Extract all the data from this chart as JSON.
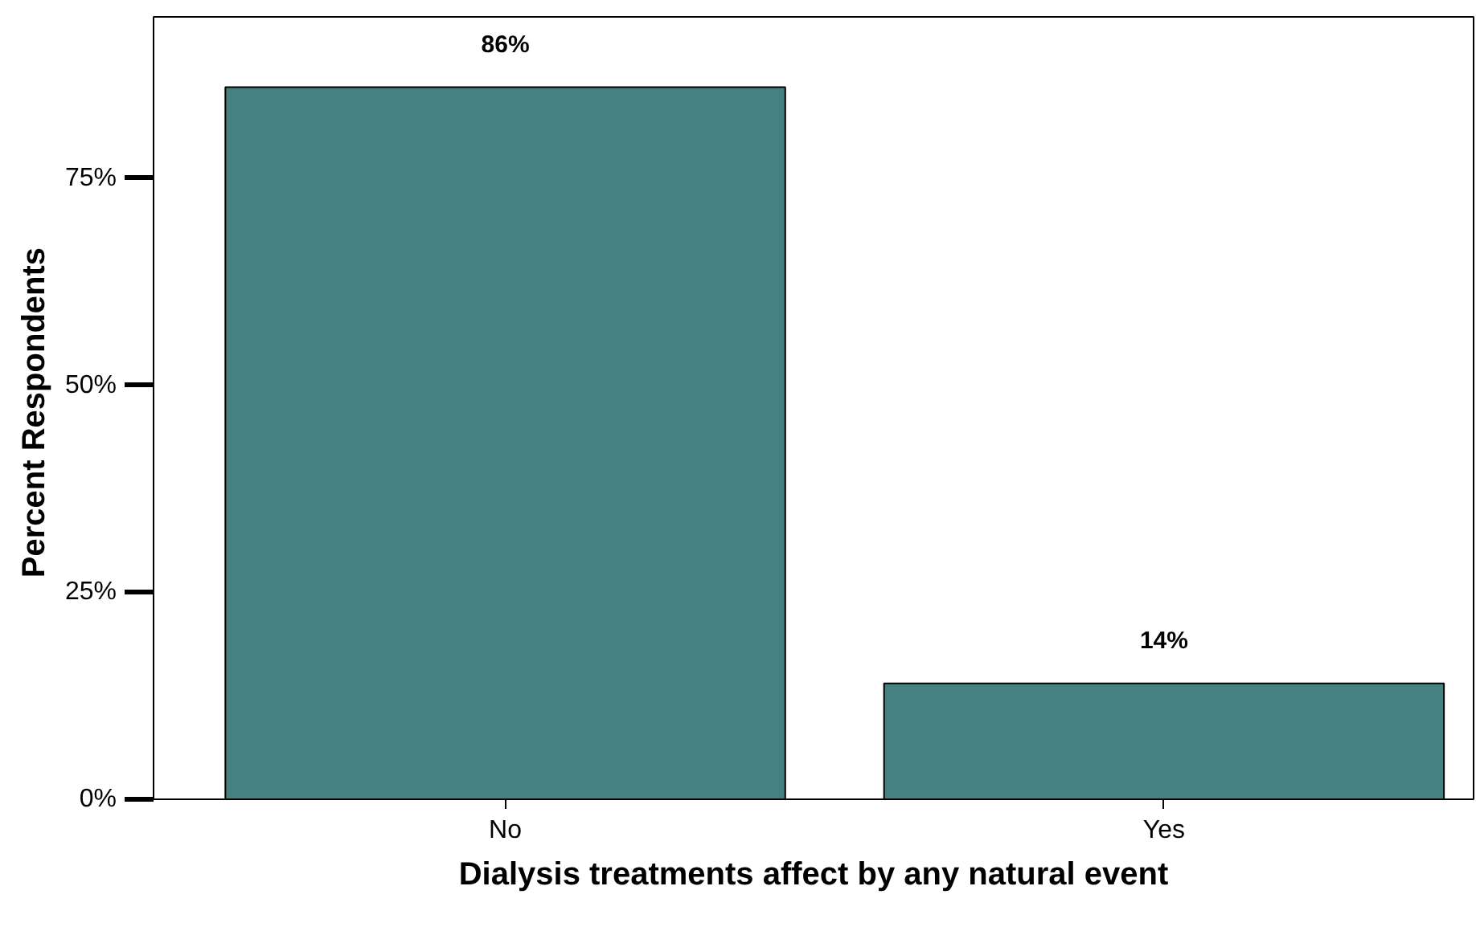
{
  "chart_data": {
    "type": "bar",
    "xlabel": "Dialysis treatments affect by any natural event",
    "ylabel": "Percent  Respondents",
    "categories": [
      "No",
      "Yes"
    ],
    "values": [
      86,
      14
    ],
    "color": "#458180",
    "value_labels": [
      "86%",
      "14%"
    ],
    "ylim": [
      0,
      94.5
    ],
    "yticks": [
      {
        "value": 0,
        "label": "0%"
      },
      {
        "value": 25,
        "label": "25%"
      },
      {
        "value": 50,
        "label": "50%"
      },
      {
        "value": 75,
        "label": "75%"
      }
    ],
    "grid": false
  }
}
